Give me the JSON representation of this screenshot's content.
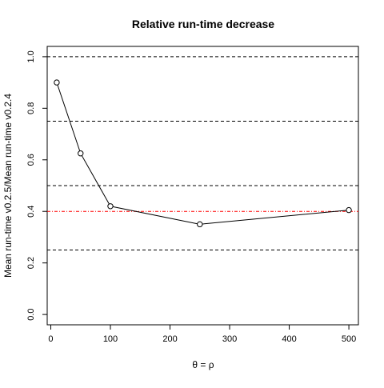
{
  "chart_data": {
    "type": "line",
    "title": "Relative run-time decrease",
    "xlabel": "θ = ρ",
    "ylabel": "Mean run-time v0.2.5/Mean run-time v0.2.4",
    "x": [
      10,
      50,
      100,
      250,
      500
    ],
    "series": [
      {
        "values": [
          0.9,
          0.625,
          0.42,
          0.35,
          0.405
        ]
      }
    ],
    "xlim": [
      -6,
      516
    ],
    "ylim": [
      -0.04,
      1.04
    ],
    "xticks": [
      0,
      100,
      200,
      300,
      400,
      500
    ],
    "xtick_labels": [
      "0",
      "100",
      "200",
      "300",
      "400",
      "500"
    ],
    "yticks": [
      0.0,
      0.2,
      0.4,
      0.6,
      0.8,
      1.0
    ],
    "ytick_labels": [
      "0.0",
      "0.2",
      "0.4",
      "0.6",
      "0.8",
      "1.0"
    ],
    "reference_lines": [
      {
        "y": 1.0,
        "color": "#000000",
        "style": "dashed"
      },
      {
        "y": 0.75,
        "color": "#000000",
        "style": "dashed"
      },
      {
        "y": 0.5,
        "color": "#000000",
        "style": "dashed"
      },
      {
        "y": 0.25,
        "color": "#000000",
        "style": "dashed"
      },
      {
        "y": 0.4,
        "color": "#ff0000",
        "style": "dotdash"
      }
    ],
    "grid": false,
    "legend": "none",
    "colors": {
      "series": "#000000",
      "axis": "#000000",
      "reference": "#000000",
      "highlight": "#ff0000"
    }
  }
}
